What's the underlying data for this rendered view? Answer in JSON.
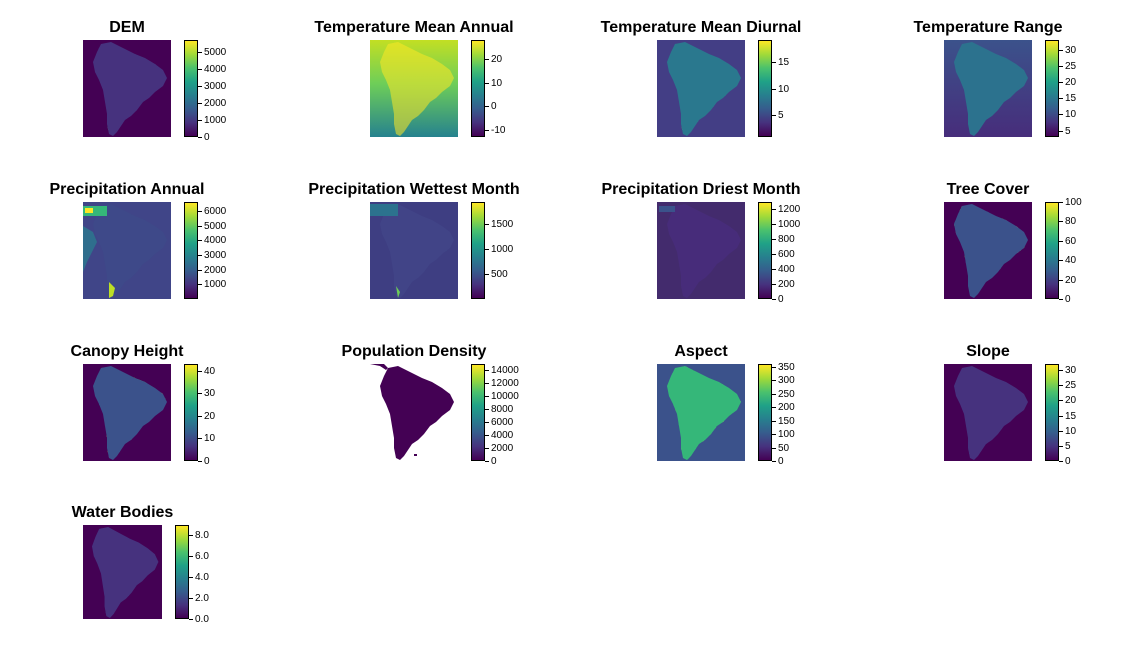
{
  "colors": {
    "viridis": [
      "#440154",
      "#46327e",
      "#365c8d",
      "#277f8e",
      "#1fa187",
      "#4ac16d",
      "#a0da39",
      "#fde725"
    ],
    "background": "#ffffff"
  },
  "chart_data": [
    {
      "type": "heatmap",
      "title": "DEM",
      "colorbar_ticks": [
        "5000",
        "4000",
        "3000",
        "2000",
        "1000",
        "0"
      ],
      "range": [
        0,
        5700
      ]
    },
    {
      "type": "heatmap",
      "title": "Temperature Mean Annual",
      "colorbar_ticks": [
        "20",
        "10",
        "0",
        "-10"
      ],
      "range": [
        -13,
        28
      ]
    },
    {
      "type": "heatmap",
      "title": "Temperature Mean Diurnal",
      "colorbar_ticks": [
        "15",
        "10",
        "5"
      ],
      "range": [
        1,
        19
      ]
    },
    {
      "type": "heatmap",
      "title": "Temperature Range",
      "colorbar_ticks": [
        "30",
        "25",
        "20",
        "15",
        "10",
        "5"
      ],
      "range": [
        3,
        33
      ]
    },
    {
      "type": "heatmap",
      "title": "Precipitation Annual",
      "colorbar_ticks": [
        "6000",
        "5000",
        "4000",
        "3000",
        "2000",
        "1000"
      ],
      "range": [
        0,
        6600
      ]
    },
    {
      "type": "heatmap",
      "title": "Precipitation Wettest Month",
      "colorbar_ticks": [
        "1500",
        "1000",
        "500"
      ],
      "range": [
        0,
        1950
      ]
    },
    {
      "type": "heatmap",
      "title": "Precipitation Driest Month",
      "colorbar_ticks": [
        "1200",
        "1000",
        "800",
        "600",
        "400",
        "200",
        "0"
      ],
      "range": [
        0,
        1300
      ]
    },
    {
      "type": "heatmap",
      "title": "Tree Cover",
      "colorbar_ticks": [
        "100",
        "80",
        "60",
        "40",
        "20",
        "0"
      ],
      "range": [
        0,
        100
      ]
    },
    {
      "type": "heatmap",
      "title": "Canopy Height",
      "colorbar_ticks": [
        "40",
        "30",
        "20",
        "10",
        "0"
      ],
      "range": [
        0,
        43
      ]
    },
    {
      "type": "heatmap",
      "title": "Population Density",
      "colorbar_ticks": [
        "14000",
        "12000",
        "10000",
        "8000",
        "6000",
        "4000",
        "2000",
        "0"
      ],
      "range": [
        0,
        15000
      ]
    },
    {
      "type": "heatmap",
      "title": "Aspect",
      "colorbar_ticks": [
        "350",
        "300",
        "250",
        "200",
        "150",
        "100",
        "50",
        "0"
      ],
      "range": [
        0,
        360
      ]
    },
    {
      "type": "heatmap",
      "title": "Slope",
      "colorbar_ticks": [
        "30",
        "25",
        "20",
        "15",
        "10",
        "5",
        "0"
      ],
      "range": [
        0,
        32
      ]
    },
    {
      "type": "heatmap",
      "title": "Water Bodies",
      "colorbar_ticks": [
        "8.0",
        "6.0",
        "4.0",
        "2.0",
        "0.0"
      ],
      "range": [
        0,
        9
      ]
    }
  ]
}
